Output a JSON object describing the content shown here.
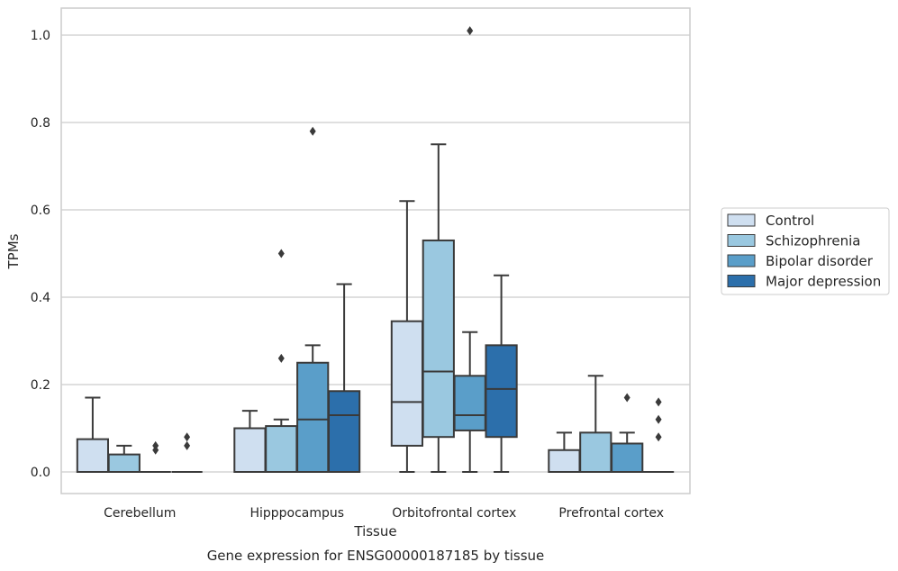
{
  "chart_data": {
    "type": "box",
    "xlabel": "Tissue",
    "ylabel": "TPMs",
    "caption": "Gene expression for ENSG00000187185 by tissue",
    "ylim": [
      -0.05,
      1.06
    ],
    "yticks": [
      "0.0",
      "0.2",
      "0.4",
      "0.6",
      "0.8",
      "1.0"
    ],
    "categories": [
      "Cerebellum",
      "Hipppocampus",
      "Orbitofrontal cortex",
      "Prefrontal cortex"
    ],
    "grid": "horizontal",
    "legend_position": "right",
    "series": [
      {
        "name": "Control",
        "color": "#cfdff0",
        "boxes": [
          {
            "q1": 0,
            "median": 0,
            "q3": 0.075,
            "whislo": 0,
            "whishi": 0.17,
            "fliers": []
          },
          {
            "q1": 0,
            "median": 0,
            "q3": 0.1,
            "whislo": 0,
            "whishi": 0.14,
            "fliers": []
          },
          {
            "q1": 0.06,
            "median": 0.16,
            "q3": 0.345,
            "whislo": 0,
            "whishi": 0.62,
            "fliers": []
          },
          {
            "q1": 0,
            "median": 0,
            "q3": 0.05,
            "whislo": 0,
            "whishi": 0.09,
            "fliers": []
          }
        ]
      },
      {
        "name": "Schizophrenia",
        "color": "#9ac8e0",
        "boxes": [
          {
            "q1": 0,
            "median": 0,
            "q3": 0.04,
            "whislo": 0,
            "whishi": 0.06,
            "fliers": []
          },
          {
            "q1": 0,
            "median": 0,
            "q3": 0.105,
            "whislo": 0,
            "whishi": 0.12,
            "fliers": [
              0.26,
              0.5
            ]
          },
          {
            "q1": 0.08,
            "median": 0.23,
            "q3": 0.53,
            "whislo": 0,
            "whishi": 0.75,
            "fliers": []
          },
          {
            "q1": 0,
            "median": 0,
            "q3": 0.09,
            "whislo": 0,
            "whishi": 0.22,
            "fliers": []
          }
        ]
      },
      {
        "name": "Bipolar disorder",
        "color": "#5a9ec9",
        "boxes": [
          {
            "q1": 0,
            "median": 0,
            "q3": 0,
            "whislo": 0,
            "whishi": 0,
            "fliers": [
              0.05,
              0.06
            ]
          },
          {
            "q1": 0,
            "median": 0.12,
            "q3": 0.25,
            "whislo": 0,
            "whishi": 0.29,
            "fliers": [
              0.78
            ]
          },
          {
            "q1": 0.095,
            "median": 0.13,
            "q3": 0.22,
            "whislo": 0,
            "whishi": 0.32,
            "fliers": [
              1.01
            ]
          },
          {
            "q1": 0,
            "median": 0,
            "q3": 0.065,
            "whislo": 0,
            "whishi": 0.09,
            "fliers": [
              0.17
            ]
          }
        ]
      },
      {
        "name": "Major depression",
        "color": "#2c6fab",
        "boxes": [
          {
            "q1": 0,
            "median": 0,
            "q3": 0,
            "whislo": 0,
            "whishi": 0,
            "fliers": [
              0.06,
              0.08
            ]
          },
          {
            "q1": 0,
            "median": 0.13,
            "q3": 0.185,
            "whislo": 0,
            "whishi": 0.43,
            "fliers": []
          },
          {
            "q1": 0.08,
            "median": 0.19,
            "q3": 0.29,
            "whislo": 0,
            "whishi": 0.45,
            "fliers": []
          },
          {
            "q1": 0,
            "median": 0,
            "q3": 0,
            "whislo": 0,
            "whishi": 0,
            "fliers": [
              0.08,
              0.12,
              0.16
            ]
          }
        ]
      }
    ]
  }
}
